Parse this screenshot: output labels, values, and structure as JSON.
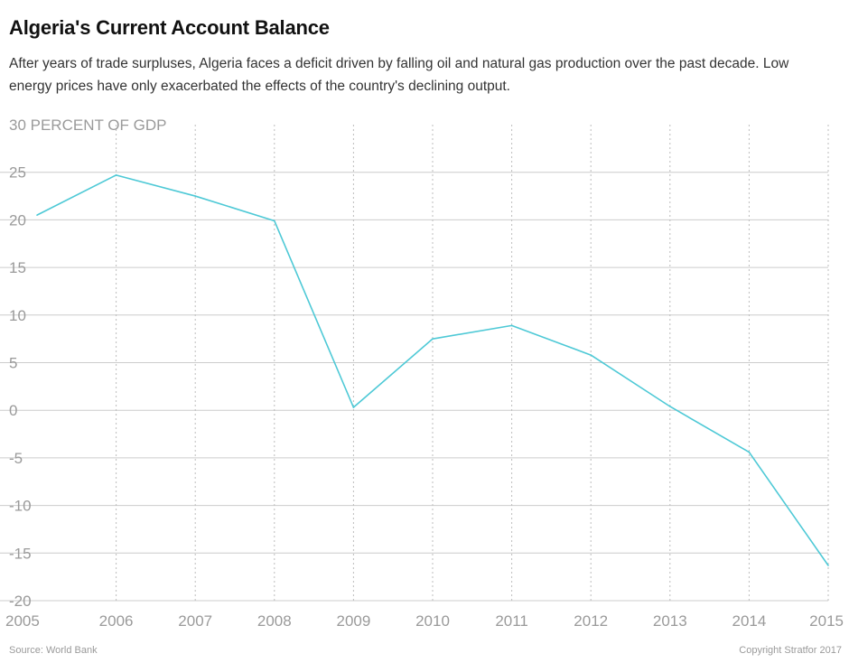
{
  "title": "Algeria's Current Account Balance",
  "subtitle": "After years of trade surpluses, Algeria faces a deficit driven by falling oil and natural gas production over the past decade. Low energy prices have only exacerbated the effects of the country's declining output.",
  "source": "Source: World Bank",
  "copyright": "Copyright Stratfor 2017",
  "colors": {
    "line": "#4ec9d6",
    "grid": "#cccccc",
    "tick_text": "#9a9a9a"
  },
  "chart_data": {
    "type": "line",
    "ylabel": "PERCENT OF GDP",
    "ylim": [
      -20,
      30
    ],
    "yticks": [
      30,
      25,
      20,
      15,
      10,
      5,
      0,
      -5,
      -10,
      -15,
      -20
    ],
    "x": [
      "2005",
      "2006",
      "2007",
      "2008",
      "2009",
      "2010",
      "2011",
      "2012",
      "2013",
      "2014",
      "2015"
    ],
    "series": [
      {
        "values": [
          20.5,
          24.7,
          22.5,
          19.9,
          0.3,
          7.5,
          8.9,
          5.8,
          0.4,
          -4.4,
          -16.3
        ]
      }
    ],
    "grid": true
  }
}
